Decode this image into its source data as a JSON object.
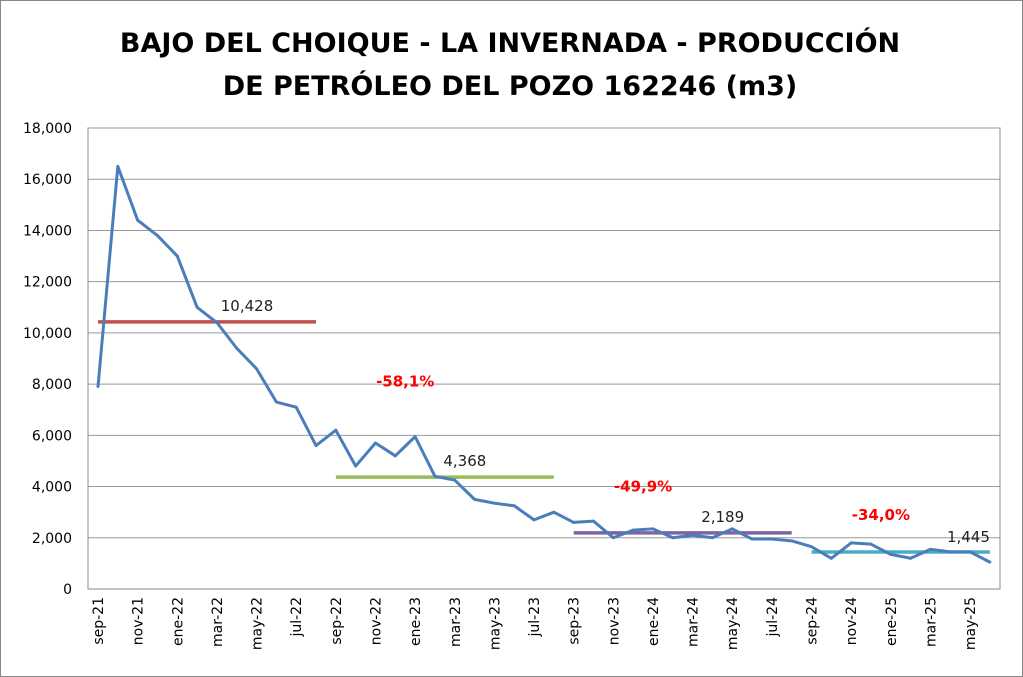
{
  "chart_data": {
    "type": "line",
    "title_lines": [
      "BAJO DEL CHOIQUE - LA INVERNADA - PRODUCCIÓN",
      "DE PETRÓLEO DEL POZO 162246 (m3)"
    ],
    "xlabel": "",
    "ylabel": "",
    "ylim": [
      0,
      18000
    ],
    "yticks": [
      "0",
      "2,000",
      "4,000",
      "6,000",
      "8,000",
      "10,000",
      "12,000",
      "14,000",
      "16,000",
      "18,000"
    ],
    "ytick_values": [
      0,
      2000,
      4000,
      6000,
      8000,
      10000,
      12000,
      14000,
      16000,
      18000
    ],
    "grid": true,
    "x": [
      "sep-21",
      "oct-21",
      "nov-21",
      "dic-21",
      "ene-22",
      "feb-22",
      "mar-22",
      "abr-22",
      "may-22",
      "jun-22",
      "jul-22",
      "ago-22",
      "sep-22",
      "oct-22",
      "nov-22",
      "dic-22",
      "ene-23",
      "feb-23",
      "mar-23",
      "abr-23",
      "may-23",
      "jun-23",
      "jul-23",
      "ago-23",
      "sep-23",
      "oct-23",
      "nov-23",
      "dic-23",
      "ene-24",
      "feb-24",
      "mar-24",
      "abr-24",
      "may-24",
      "jun-24",
      "jul-24",
      "ago-24",
      "sep-24",
      "oct-24",
      "nov-24",
      "dic-24",
      "ene-25",
      "feb-25",
      "mar-25",
      "abr-25",
      "may-25",
      "jun-25"
    ],
    "xtick_labels_every": 2,
    "series": [
      {
        "name": "Producción",
        "color": "#4a7ebb",
        "values": [
          7900,
          16500,
          14400,
          13800,
          13000,
          11000,
          10400,
          9400,
          8600,
          7300,
          7100,
          5600,
          6200,
          4800,
          5700,
          5200,
          5950,
          4400,
          4250,
          3500,
          3350,
          3250,
          2700,
          3000,
          2600,
          2650,
          2000,
          2300,
          2350,
          2000,
          2100,
          2000,
          2350,
          1950,
          1950,
          1880,
          1650,
          1200,
          1800,
          1750,
          1350,
          1200,
          1550,
          1450,
          1450,
          1050
        ]
      }
    ],
    "averages": [
      {
        "label": "10,428",
        "value": 10428,
        "from": 0,
        "to": 11,
        "color": "#c0504d"
      },
      {
        "label": "4,368",
        "value": 4368,
        "from": 12,
        "to": 23,
        "color": "#9bbb59"
      },
      {
        "label": "2,189",
        "value": 2189,
        "from": 24,
        "to": 35,
        "color": "#8064a2"
      },
      {
        "label": "1,445",
        "value": 1445,
        "from": 36,
        "to": 45,
        "color": "#4bacc6"
      }
    ],
    "annotations": [
      {
        "text": "-58,1%",
        "color": "#ff0000",
        "x_index": 15.5,
        "y": 7900
      },
      {
        "text": "-49,9%",
        "color": "#ff0000",
        "x_index": 27.5,
        "y": 3800
      },
      {
        "text": "-34,0%",
        "color": "#ff0000",
        "x_index": 39.5,
        "y": 2700
      }
    ]
  }
}
